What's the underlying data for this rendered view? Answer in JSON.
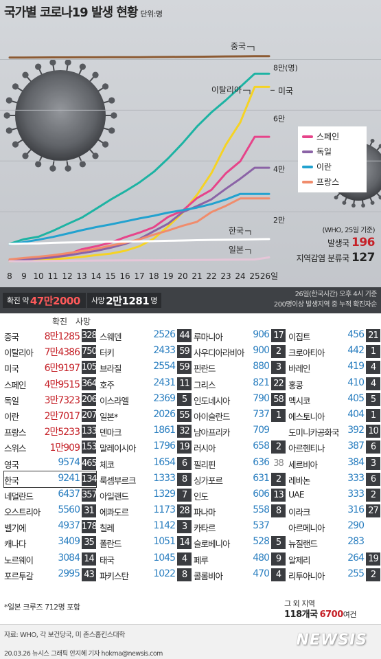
{
  "title": "국가별 코로나19 발생 현황",
  "unit": "단위:명",
  "chart_data": {
    "type": "line",
    "x": [
      "8",
      "9",
      "10",
      "11",
      "12",
      "13",
      "14",
      "15",
      "16",
      "17",
      "18",
      "19",
      "20",
      "21",
      "22",
      "23",
      "24",
      "25",
      "26일"
    ],
    "ylim": [
      0,
      85000
    ],
    "y_ticks": [
      {
        "value": 20000,
        "label": "2만"
      },
      {
        "value": 40000,
        "label": "4만"
      },
      {
        "value": 60000,
        "label": "6만"
      },
      {
        "value": 80000,
        "label": "8만(명)"
      }
    ],
    "series": [
      {
        "name": "중국",
        "color": "#8c5a32",
        "values": [
          80735,
          80754,
          80778,
          80793,
          80813,
          80824,
          80844,
          80860,
          80881,
          80894,
          80928,
          80967,
          81008,
          81054,
          81093,
          81171,
          81218,
          81285,
          81285
        ]
      },
      {
        "name": "이탈리아",
        "color": "#1db3a3",
        "values": [
          7375,
          9172,
          10149,
          12462,
          15113,
          17660,
          21157,
          24747,
          27980,
          31506,
          35713,
          41035,
          47021,
          53578,
          59138,
          63927,
          69176,
          74386,
          74386
        ]
      },
      {
        "name": "미국",
        "color": "#f5d324",
        "values": [
          500,
          700,
          1000,
          1300,
          1700,
          2200,
          2900,
          3500,
          4600,
          6400,
          9400,
          14200,
          19600,
          26700,
          35200,
          46400,
          55200,
          69197,
          69197
        ]
      },
      {
        "name": "스페인",
        "color": "#e6448a",
        "values": [
          673,
          1073,
          1695,
          2277,
          3146,
          5232,
          6391,
          7798,
          9942,
          11748,
          13910,
          17963,
          20410,
          25374,
          28603,
          35136,
          39885,
          49515,
          49515
        ]
      },
      {
        "name": "독일",
        "color": "#8b63a6",
        "values": [
          1040,
          1224,
          1565,
          1966,
          2745,
          3675,
          4599,
          5813,
          7272,
          9257,
          12327,
          15320,
          19848,
          22213,
          24873,
          29056,
          32986,
          37323,
          37323
        ]
      },
      {
        "name": "이란",
        "color": "#22a2cf",
        "values": [
          7161,
          8042,
          9000,
          10075,
          11364,
          12729,
          13938,
          14991,
          16169,
          17361,
          18407,
          19644,
          20610,
          21638,
          23049,
          24811,
          27017,
          27017,
          27017
        ]
      },
      {
        "name": "프랑스",
        "color": "#f08c6c",
        "values": [
          1209,
          1784,
          2281,
          2876,
          3661,
          4499,
          5423,
          6633,
          7730,
          9134,
          10995,
          12612,
          14459,
          16018,
          19856,
          22302,
          25233,
          25233,
          25233
        ]
      },
      {
        "name": "한국",
        "color": "#ffffff",
        "values": [
          7313,
          7478,
          7513,
          7755,
          7869,
          7979,
          8086,
          8162,
          8236,
          8320,
          8413,
          8565,
          8652,
          8799,
          8897,
          8961,
          9037,
          9137,
          9241
        ]
      },
      {
        "name": "일본",
        "color": "#e6c6d8",
        "values": [
          502,
          511,
          581,
          639,
          689,
          734,
          780,
          814,
          829,
          878,
          889,
          924,
          963,
          1007,
          1054,
          1101,
          1128,
          1193,
          2026
        ]
      }
    ],
    "legend_items": [
      {
        "name": "스페인",
        "color": "#e6448a"
      },
      {
        "name": "독일",
        "color": "#8b63a6"
      },
      {
        "name": "이란",
        "color": "#22a2cf"
      },
      {
        "name": "프랑스",
        "color": "#f08c6c"
      }
    ],
    "labels": {
      "china": "중국",
      "italy": "이탈리아",
      "usa": "미국",
      "korea": "한국",
      "japan": "일본"
    }
  },
  "info": {
    "who": "(WHO, 25일 기준)",
    "countries_label": "발생국",
    "countries_value": "196",
    "local_label": "지역감염 분류국",
    "local_value": "127"
  },
  "summary": {
    "confirmed_label": "확진 약",
    "confirmed_value": "47만2000",
    "deaths_label": "사망",
    "deaths_value": "2만1281",
    "deaths_unit": "명",
    "note1": "26일(한국시간) 오후 4시 기준",
    "note2": "200명이상 발생지역 중 누적 확진자순"
  },
  "table": {
    "header_cases": "확진",
    "header_deaths": "사망",
    "columns": [
      [
        {
          "country": "중국",
          "cases": "8만1285",
          "deaths": "3287",
          "red": true
        },
        {
          "country": "이탈리아",
          "cases": "7만4386",
          "deaths": "7503",
          "red": true
        },
        {
          "country": "미국",
          "cases": "6만9197",
          "deaths": "1050",
          "red": true
        },
        {
          "country": "스페인",
          "cases": "4만9515",
          "deaths": "3647",
          "red": true
        },
        {
          "country": "독일",
          "cases": "3만7323",
          "deaths": "206",
          "red": true
        },
        {
          "country": "이란",
          "cases": "2만7017",
          "deaths": "2077",
          "red": true
        },
        {
          "country": "프랑스",
          "cases": "2만5233",
          "deaths": "1331",
          "red": true
        },
        {
          "country": "스위스",
          "cases": "1만909",
          "deaths": "153",
          "red": true
        },
        {
          "country": "영국",
          "cases": "9574",
          "deaths": "465"
        },
        {
          "country": "한국",
          "cases": "9241",
          "deaths": "134",
          "highlight": true
        },
        {
          "country": "네덜란드",
          "cases": "6437",
          "deaths": "357"
        },
        {
          "country": "오스트리아",
          "cases": "5560",
          "deaths": "31"
        },
        {
          "country": "벨기에",
          "cases": "4937",
          "deaths": "178"
        },
        {
          "country": "캐나다",
          "cases": "3409",
          "deaths": "35"
        },
        {
          "country": "노르웨이",
          "cases": "3084",
          "deaths": "14"
        },
        {
          "country": "포르투갈",
          "cases": "2995",
          "deaths": "43"
        }
      ],
      [
        {
          "country": "스웨덴",
          "cases": "2526",
          "deaths": "44"
        },
        {
          "country": "터키",
          "cases": "2433",
          "deaths": "59"
        },
        {
          "country": "브라질",
          "cases": "2554",
          "deaths": "59"
        },
        {
          "country": "호주",
          "cases": "2431",
          "deaths": "11"
        },
        {
          "country": "이스라엘",
          "cases": "2369",
          "deaths": "5"
        },
        {
          "country": "일본*",
          "cases": "2026",
          "deaths": "55"
        },
        {
          "country": "덴마크",
          "cases": "1861",
          "deaths": "32"
        },
        {
          "country": "말레이시아",
          "cases": "1796",
          "deaths": "19"
        },
        {
          "country": "체코",
          "cases": "1654",
          "deaths": "6"
        },
        {
          "country": "룩셈부르크",
          "cases": "1333",
          "deaths": "8"
        },
        {
          "country": "아일랜드",
          "cases": "1329",
          "deaths": "7"
        },
        {
          "country": "에콰도르",
          "cases": "1173",
          "deaths": "28"
        },
        {
          "country": "칠레",
          "cases": "1142",
          "deaths": "3"
        },
        {
          "country": "폴란드",
          "cases": "1051",
          "deaths": "14"
        },
        {
          "country": "태국",
          "cases": "1045",
          "deaths": "4"
        },
        {
          "country": "파키스탄",
          "cases": "1022",
          "deaths": "8"
        }
      ],
      [
        {
          "country": "루마니아",
          "cases": "906",
          "deaths": "17"
        },
        {
          "country": "사우디아라비아",
          "cases": "900",
          "deaths": "2"
        },
        {
          "country": "핀란드",
          "cases": "880",
          "deaths": "3"
        },
        {
          "country": "그리스",
          "cases": "821",
          "deaths": "22"
        },
        {
          "country": "인도네시아",
          "cases": "790",
          "deaths": "58"
        },
        {
          "country": "아이슬란드",
          "cases": "737",
          "deaths": "1"
        },
        {
          "country": "남아프리카",
          "cases": "709",
          "deaths": ""
        },
        {
          "country": "러시아",
          "cases": "658",
          "deaths": "2"
        },
        {
          "country": "필리핀",
          "cases": "636",
          "deaths": "38",
          "light": true
        },
        {
          "country": "싱가포르",
          "cases": "631",
          "deaths": "2"
        },
        {
          "country": "인도",
          "cases": "606",
          "deaths": "13"
        },
        {
          "country": "파나마",
          "cases": "558",
          "deaths": "8"
        },
        {
          "country": "카타르",
          "cases": "537",
          "deaths": ""
        },
        {
          "country": "슬로베니아",
          "cases": "528",
          "deaths": "5"
        },
        {
          "country": "페루",
          "cases": "480",
          "deaths": "9"
        },
        {
          "country": "콜롬비아",
          "cases": "470",
          "deaths": "4"
        }
      ],
      [
        {
          "country": "이집트",
          "cases": "456",
          "deaths": "21"
        },
        {
          "country": "크로아티아",
          "cases": "442",
          "deaths": "1"
        },
        {
          "country": "바레인",
          "cases": "419",
          "deaths": "4"
        },
        {
          "country": "홍콩",
          "cases": "410",
          "deaths": "4"
        },
        {
          "country": "멕시코",
          "cases": "405",
          "deaths": "5"
        },
        {
          "country": "에스토니아",
          "cases": "404",
          "deaths": "1"
        },
        {
          "country": "도미니카공화국",
          "cases": "392",
          "deaths": "10"
        },
        {
          "country": "아르헨티나",
          "cases": "387",
          "deaths": "6"
        },
        {
          "country": "세르비아",
          "cases": "384",
          "deaths": "3"
        },
        {
          "country": "레바논",
          "cases": "333",
          "deaths": "6"
        },
        {
          "country": "UAE",
          "cases": "333",
          "deaths": "2"
        },
        {
          "country": "이라크",
          "cases": "316",
          "deaths": "27"
        },
        {
          "country": "아르메니아",
          "cases": "290",
          "deaths": ""
        },
        {
          "country": "뉴질랜드",
          "cases": "283",
          "deaths": ""
        },
        {
          "country": "알제리",
          "cases": "264",
          "deaths": "19"
        },
        {
          "country": "리투아니아",
          "cases": "255",
          "deaths": "2"
        }
      ]
    ]
  },
  "footnote": "*일본 크루즈 712명 포함",
  "others": {
    "line1": "그 외 지역",
    "count": "118개국",
    "cases": "6700",
    "suffix": "여건"
  },
  "sources": {
    "line1": "자료: WHO, 각 보건당국, 미 존스홉킨스대학",
    "line2": "20.03.26 뉴시스 그래픽 안지혜 기자 hokma@newsis.com"
  },
  "logo": "NEWSIS",
  "colors": {
    "accent_red": "#c52027",
    "accent_blue": "#2b7fc0",
    "box_dark": "#3a3c40"
  }
}
